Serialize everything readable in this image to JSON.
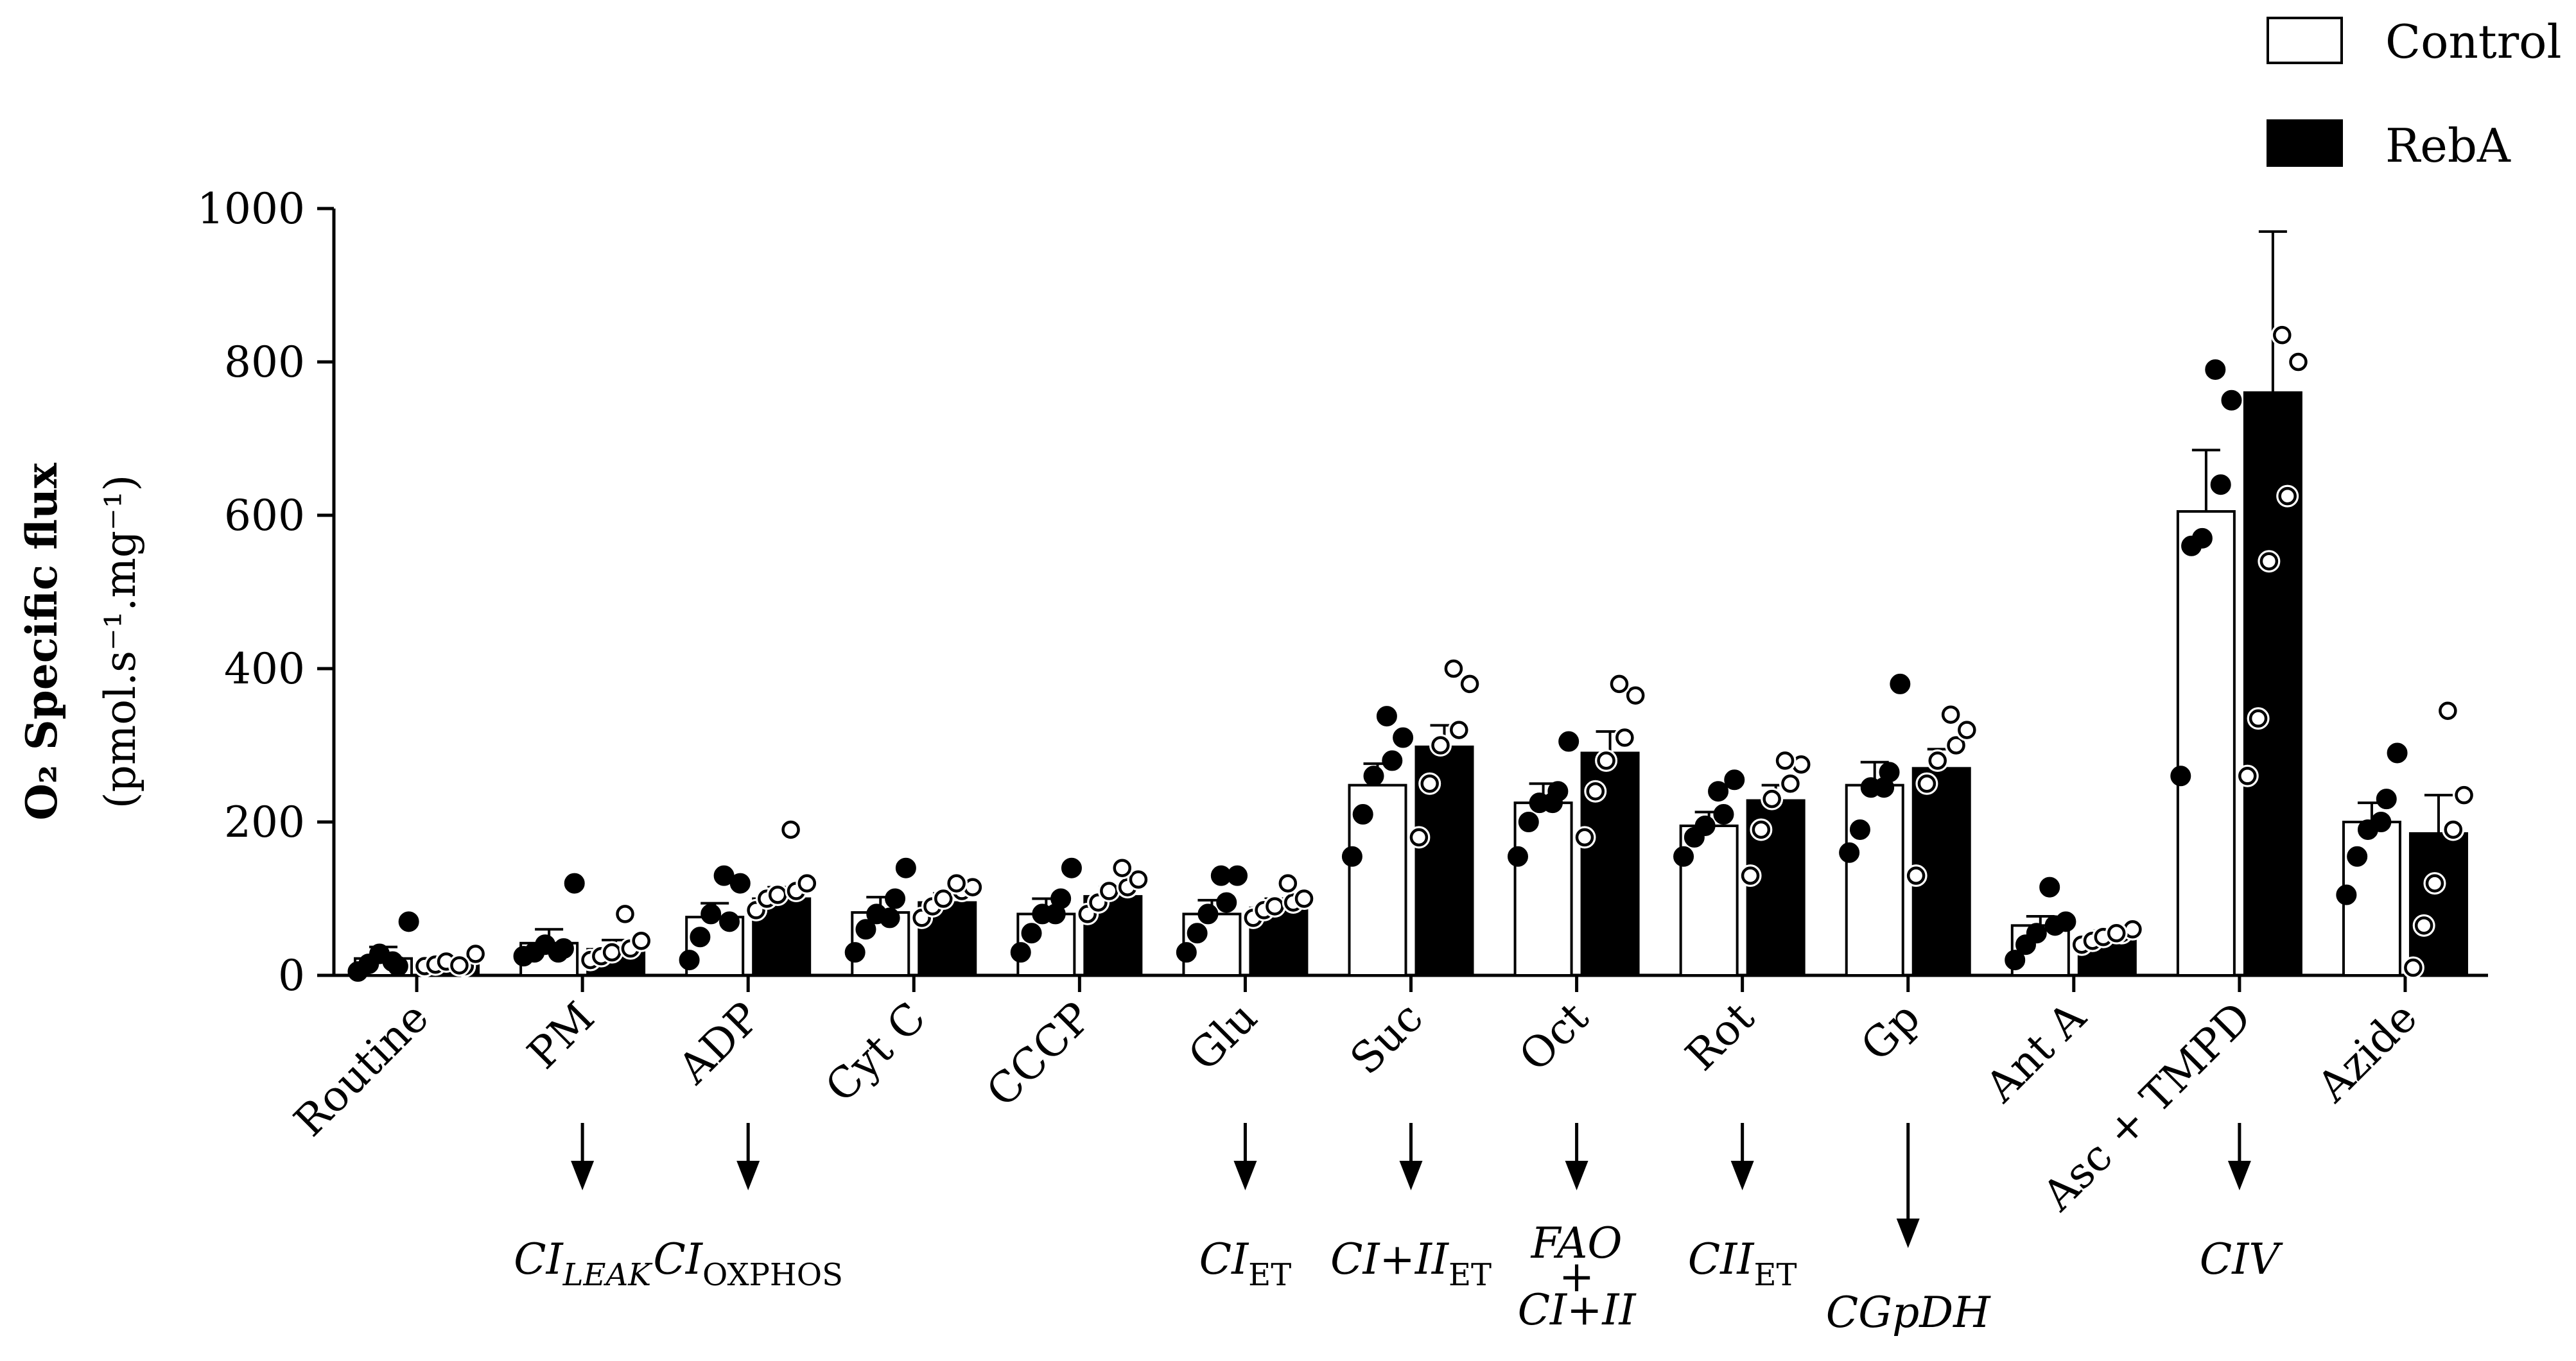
{
  "chart_data": {
    "type": "bar",
    "title": "",
    "xlabel": "",
    "ylabel": {
      "main": "O₂ Specific flux",
      "units": "(pmol.s⁻¹.mg⁻¹)"
    },
    "ylim": [
      0,
      1000
    ],
    "yticks": [
      "0",
      "200",
      "400",
      "600",
      "800",
      "1000"
    ],
    "categories": [
      "Routine",
      "PM",
      "ADP",
      "Cyt C",
      "CCCP",
      "Glu",
      "Suc",
      "Oct",
      "Rot",
      "Gp",
      "Ant A",
      "Asc + TMPD",
      "Azide"
    ],
    "legend": {
      "position": "top-right",
      "entries": [
        "Control",
        "RebA"
      ]
    },
    "series": [
      {
        "name": "Control",
        "fill": "#ffffff",
        "values": [
          22,
          42,
          76,
          82,
          80,
          80,
          248,
          225,
          195,
          248,
          65,
          605,
          200
        ],
        "errors": [
          15,
          18,
          18,
          20,
          20,
          18,
          28,
          25,
          18,
          30,
          12,
          80,
          25
        ],
        "points": [
          [
            5,
            15,
            28,
            12,
            70,
            18
          ],
          [
            25,
            30,
            40,
            35,
            120,
            30
          ],
          [
            20,
            50,
            80,
            70,
            120,
            130
          ],
          [
            30,
            60,
            80,
            100,
            140,
            75
          ],
          [
            30,
            55,
            80,
            100,
            140,
            80
          ],
          [
            30,
            55,
            80,
            95,
            130,
            130
          ],
          [
            155,
            210,
            260,
            280,
            310,
            338
          ],
          [
            155,
            200,
            225,
            240,
            305,
            225
          ],
          [
            155,
            180,
            195,
            210,
            255,
            240
          ],
          [
            160,
            190,
            245,
            265,
            380,
            245
          ],
          [
            20,
            40,
            55,
            65,
            70,
            115
          ],
          [
            260,
            560,
            570,
            640,
            750,
            790
          ],
          [
            105,
            155,
            190,
            230,
            290,
            200
          ]
        ]
      },
      {
        "name": "RebA",
        "fill": "#000000",
        "values": [
          14,
          34,
          100,
          95,
          103,
          88,
          298,
          290,
          228,
          270,
          50,
          760,
          185
        ],
        "errors": [
          5,
          12,
          15,
          12,
          12,
          12,
          28,
          28,
          20,
          25,
          8,
          210,
          50
        ],
        "points": [
          [
            12,
            14,
            18,
            12,
            28,
            13
          ],
          [
            20,
            25,
            30,
            35,
            45,
            80
          ],
          [
            85,
            100,
            105,
            110,
            120,
            190
          ],
          [
            75,
            90,
            100,
            110,
            115,
            120
          ],
          [
            80,
            95,
            110,
            115,
            125,
            140
          ],
          [
            75,
            85,
            90,
            95,
            100,
            120
          ],
          [
            180,
            250,
            300,
            320,
            380,
            400
          ],
          [
            180,
            240,
            280,
            310,
            365,
            380
          ],
          [
            130,
            190,
            230,
            250,
            275,
            280
          ],
          [
            130,
            250,
            280,
            300,
            320,
            340
          ],
          [
            40,
            45,
            50,
            55,
            60,
            55
          ],
          [
            260,
            335,
            540,
            625,
            800,
            835
          ],
          [
            10,
            65,
            120,
            190,
            235,
            345
          ]
        ]
      }
    ],
    "annotations": [
      {
        "category": "PM",
        "arrow": true,
        "text": "CI",
        "sub": "LEAK",
        "sub_italic": true
      },
      {
        "category": "ADP",
        "arrow": true,
        "text": "CI",
        "sub": "OXPHOS",
        "sub_italic": false
      },
      {
        "category": "Glu",
        "arrow": true,
        "text": "CI",
        "sub": "ET",
        "sub_italic": false
      },
      {
        "category": "Suc",
        "arrow": true,
        "text": "CI+II",
        "sub": "ET",
        "sub_italic": false
      },
      {
        "category": "Oct",
        "arrow": true,
        "lines": [
          "FAO",
          "+",
          "CI+II"
        ]
      },
      {
        "category": "Rot",
        "arrow": true,
        "text": "CII",
        "sub": "ET",
        "sub_italic": false
      },
      {
        "category": "Gp",
        "arrow": true,
        "long": true,
        "text": "CGpDH"
      },
      {
        "category": "Asc + TMPD",
        "arrow": true,
        "text": "CIV"
      }
    ]
  }
}
